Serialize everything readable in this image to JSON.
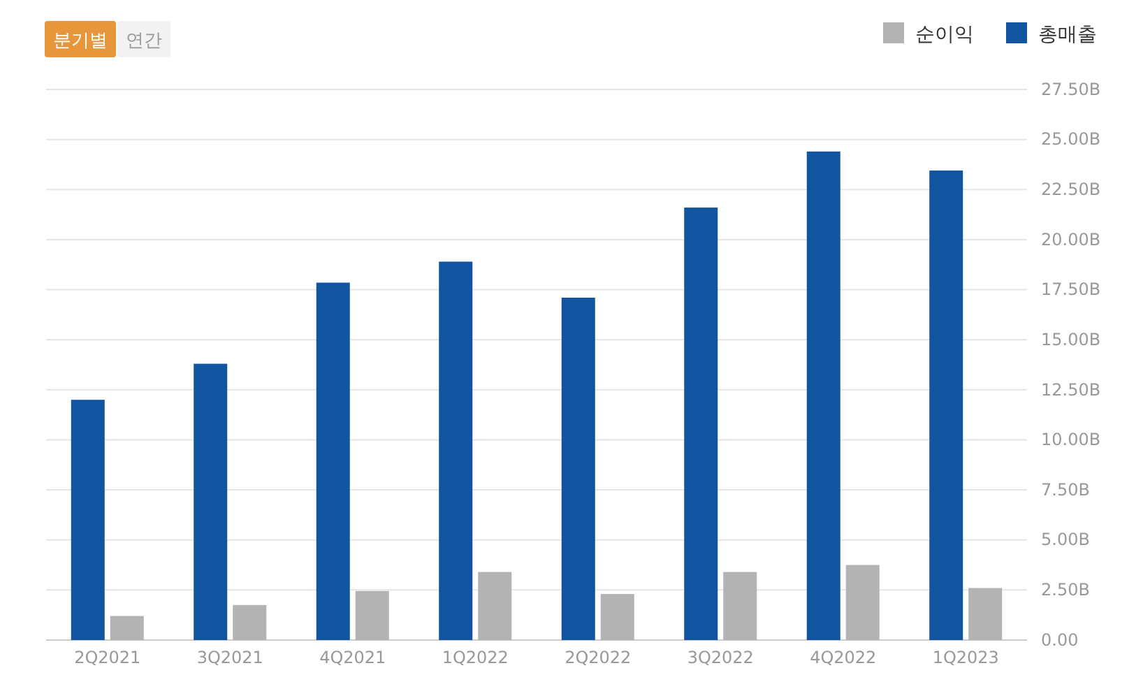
{
  "chart_data": {
    "type": "bar",
    "categories": [
      "2Q2021",
      "3Q2021",
      "4Q2021",
      "1Q2022",
      "2Q2022",
      "3Q2022",
      "4Q2022",
      "1Q2023"
    ],
    "series": [
      {
        "name": "총매출",
        "color": "#1155a0",
        "values": [
          12.0,
          13.8,
          17.85,
          18.9,
          17.1,
          21.6,
          24.4,
          23.45
        ]
      },
      {
        "name": "순이익",
        "color": "#b3b3b3",
        "values": [
          1.2,
          1.75,
          2.45,
          3.4,
          2.3,
          3.4,
          3.75,
          2.6
        ]
      }
    ],
    "ylim": [
      0,
      27.5
    ],
    "yticks": [
      {
        "value": 0,
        "label": "0.00"
      },
      {
        "value": 2.5,
        "label": "2.50B"
      },
      {
        "value": 5,
        "label": "5.00B"
      },
      {
        "value": 7.5,
        "label": "7.50B"
      },
      {
        "value": 10,
        "label": "10.00B"
      },
      {
        "value": 12.5,
        "label": "12.50B"
      },
      {
        "value": 15,
        "label": "15.00B"
      },
      {
        "value": 17.5,
        "label": "17.50B"
      },
      {
        "value": 20,
        "label": "20.00B"
      },
      {
        "value": 22.5,
        "label": "22.50B"
      },
      {
        "value": 25,
        "label": "25.00B"
      },
      {
        "value": 27.5,
        "label": "27.50B"
      }
    ],
    "grid": "y",
    "legend": "top right",
    "annotations": [
      "분기별",
      "연간"
    ]
  }
}
